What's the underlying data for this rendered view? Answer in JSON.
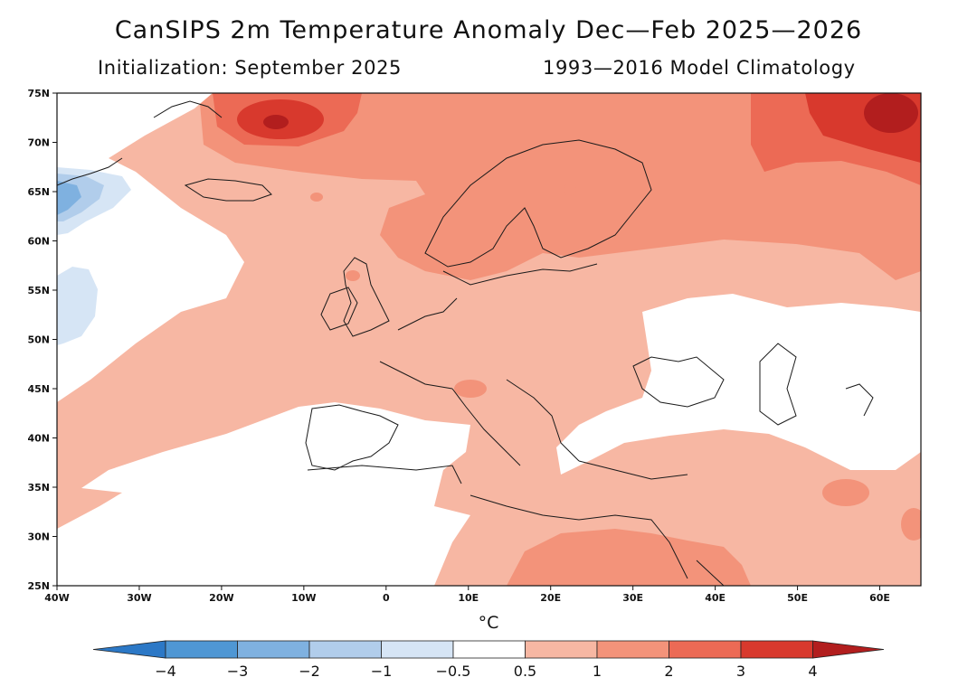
{
  "title": "CanSIPS 2m Temperature Anomaly Dec—Feb 2025—2026",
  "initialization": "Initialization: September 2025",
  "climatology": "1993—2016 Model Climatology",
  "map": {
    "lat_labels": [
      "75N",
      "70N",
      "65N",
      "60N",
      "55N",
      "50N",
      "45N",
      "40N",
      "35N",
      "30N",
      "25N"
    ],
    "lon_labels": [
      "40W",
      "30W",
      "20W",
      "10W",
      "0",
      "10E",
      "20E",
      "30E",
      "40E",
      "50E",
      "60E"
    ],
    "lon_range": [
      -40,
      65
    ],
    "lat_range": [
      25,
      75
    ]
  },
  "colorbar": {
    "unit": "°C",
    "labels": [
      "−4",
      "−3",
      "−2",
      "−1",
      "−0.5",
      "0.5",
      "1",
      "2",
      "3",
      "4"
    ],
    "colors": [
      "#2c78c6",
      "#4f97d4",
      "#7fb1e0",
      "#b1cdeb",
      "#d6e5f5",
      "#ffffff",
      "#f7b7a3",
      "#f3937a",
      "#ec6a55",
      "#d8392d",
      "#b21e1e"
    ]
  }
}
